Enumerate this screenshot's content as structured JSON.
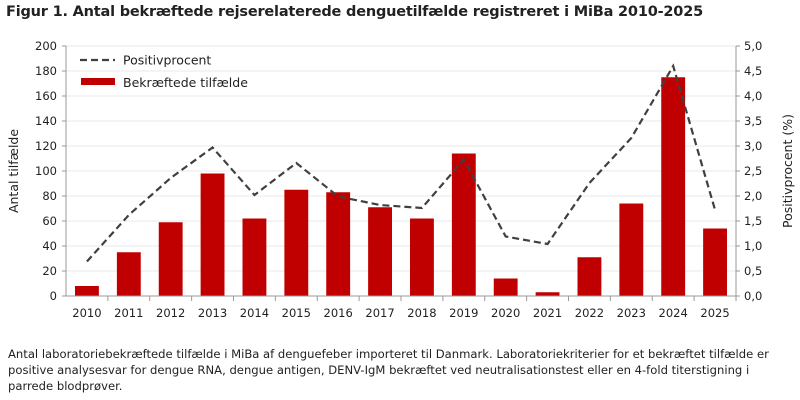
{
  "chart_data": {
    "type": "bar+line",
    "title": "Figur 1. Antal bekræftede rejserelaterede denguetilfælde registreret i MiBa 2010-2025",
    "categories": [
      "2010",
      "2011",
      "2012",
      "2013",
      "2014",
      "2015",
      "2016",
      "2017",
      "2018",
      "2019",
      "2020",
      "2021",
      "2022",
      "2023",
      "2024",
      "2025"
    ],
    "series": [
      {
        "name": "Bekræftede tilfælde",
        "type": "bar",
        "axis": "left",
        "color": "#C00000",
        "values": [
          8,
          35,
          59,
          98,
          62,
          85,
          83,
          71,
          62,
          114,
          14,
          3,
          31,
          74,
          175,
          54
        ]
      },
      {
        "name": "Positivprocent",
        "type": "line",
        "axis": "right",
        "color": "#404040",
        "dash": true,
        "values": [
          0.69,
          1.62,
          2.36,
          2.97,
          2.02,
          2.66,
          1.99,
          1.82,
          1.76,
          2.73,
          1.19,
          1.04,
          2.26,
          3.16,
          4.6,
          1.72
        ]
      }
    ],
    "ylabel": "Antal tilfælde",
    "ylim": [
      0,
      200
    ],
    "yticks": [
      "0",
      "20",
      "40",
      "60",
      "80",
      "100",
      "120",
      "140",
      "160",
      "180",
      "200"
    ],
    "y2label": "Positivprocent (%)",
    "y2lim": [
      0,
      5
    ],
    "y2ticks": [
      "0,0",
      "0,5",
      "1,0",
      "1,5",
      "2,0",
      "2,5",
      "3,0",
      "3,5",
      "4,0",
      "4,5",
      "5,0"
    ],
    "grid": true,
    "legend": "top-left"
  },
  "caption": "Antal laboratoriebekræftede tilfælde i MiBa af denguefeber importeret til Danmark. Laboratoriekriterier for et bekræftet tilfælde er positive analysesvar for dengue RNA, dengue antigen, DENV-IgM bekræftet ved neutralisationstest eller en 4-fold titerstigning i parrede blodprøver."
}
